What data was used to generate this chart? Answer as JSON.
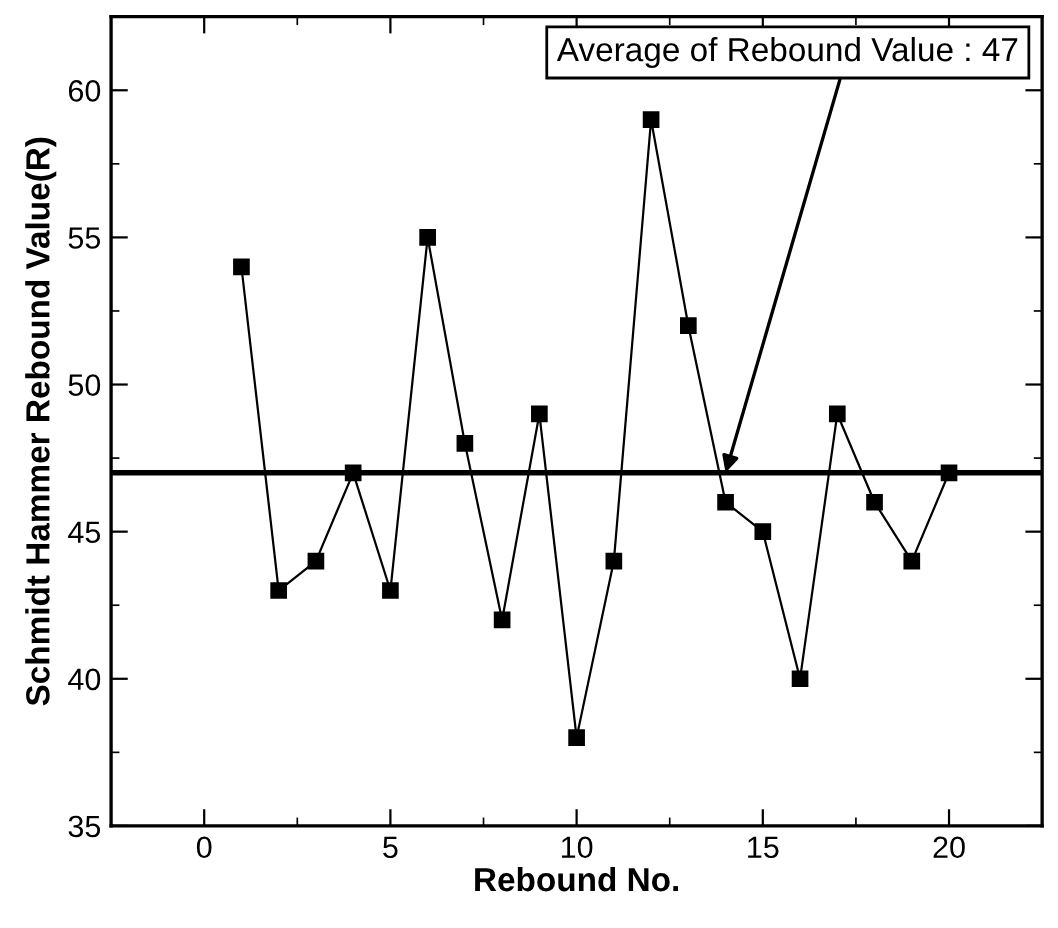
{
  "chart_data": {
    "type": "line",
    "xlabel": "Rebound No.",
    "ylabel": "Schmidt Hammer Rebound Value(R)",
    "x": [
      1,
      2,
      3,
      4,
      5,
      6,
      7,
      8,
      9,
      10,
      11,
      12,
      13,
      14,
      15,
      16,
      17,
      18,
      19,
      20
    ],
    "series": [
      {
        "color": "#000000",
        "values": [
          54,
          43,
          44,
          47,
          43,
          55,
          48,
          42,
          49,
          38,
          44,
          59,
          52,
          46,
          45,
          40,
          49,
          46,
          44,
          47
        ]
      }
    ],
    "marker": "square",
    "xlim": [
      -2.5,
      22.5
    ],
    "xticks": [
      0,
      5,
      10,
      15,
      20
    ],
    "ylim": [
      35,
      62.5
    ],
    "yticks": [
      35,
      40,
      45,
      50,
      55,
      60
    ],
    "ref_lines": [
      {
        "axis": "y",
        "value": 47,
        "color": "#000000"
      }
    ],
    "annotations": [
      {
        "text": "Average of Rebound Value : 47",
        "x": 14,
        "y": 47
      }
    ]
  }
}
